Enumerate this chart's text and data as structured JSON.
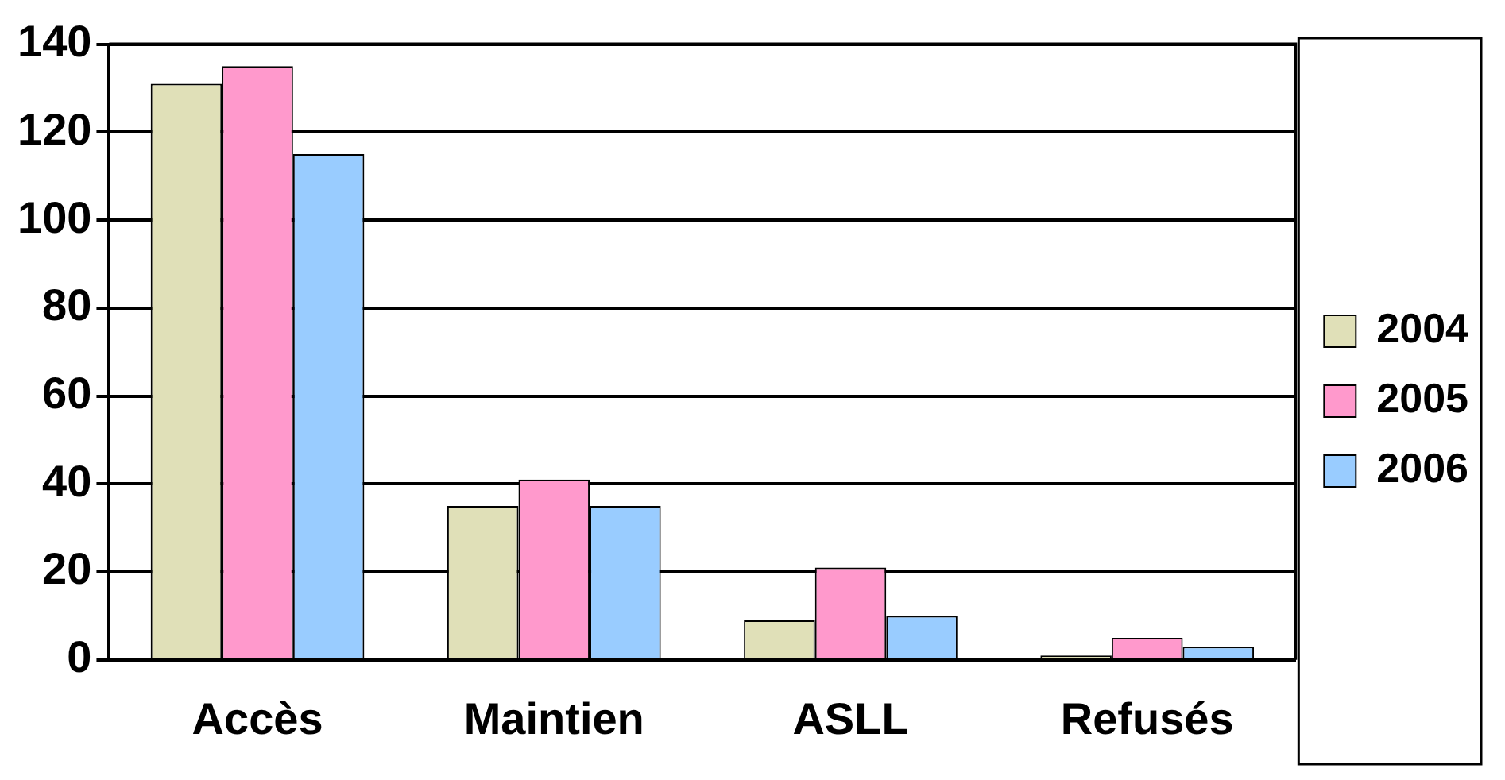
{
  "chart_data": {
    "type": "bar",
    "categories": [
      "Accès",
      "Maintien",
      "ASLL",
      "Refusés"
    ],
    "series": [
      {
        "name": "2004",
        "color": "#e0e0b8",
        "values": [
          131,
          35,
          9,
          1
        ]
      },
      {
        "name": "2005",
        "color": "#ff99cc",
        "values": [
          135,
          41,
          21,
          5
        ]
      },
      {
        "name": "2006",
        "color": "#99ccff",
        "values": [
          115,
          35,
          10,
          3
        ]
      }
    ],
    "ylim": [
      0,
      140
    ],
    "yticks": [
      0,
      20,
      40,
      60,
      80,
      100,
      120,
      140
    ],
    "grid": "y",
    "legend": "right"
  }
}
